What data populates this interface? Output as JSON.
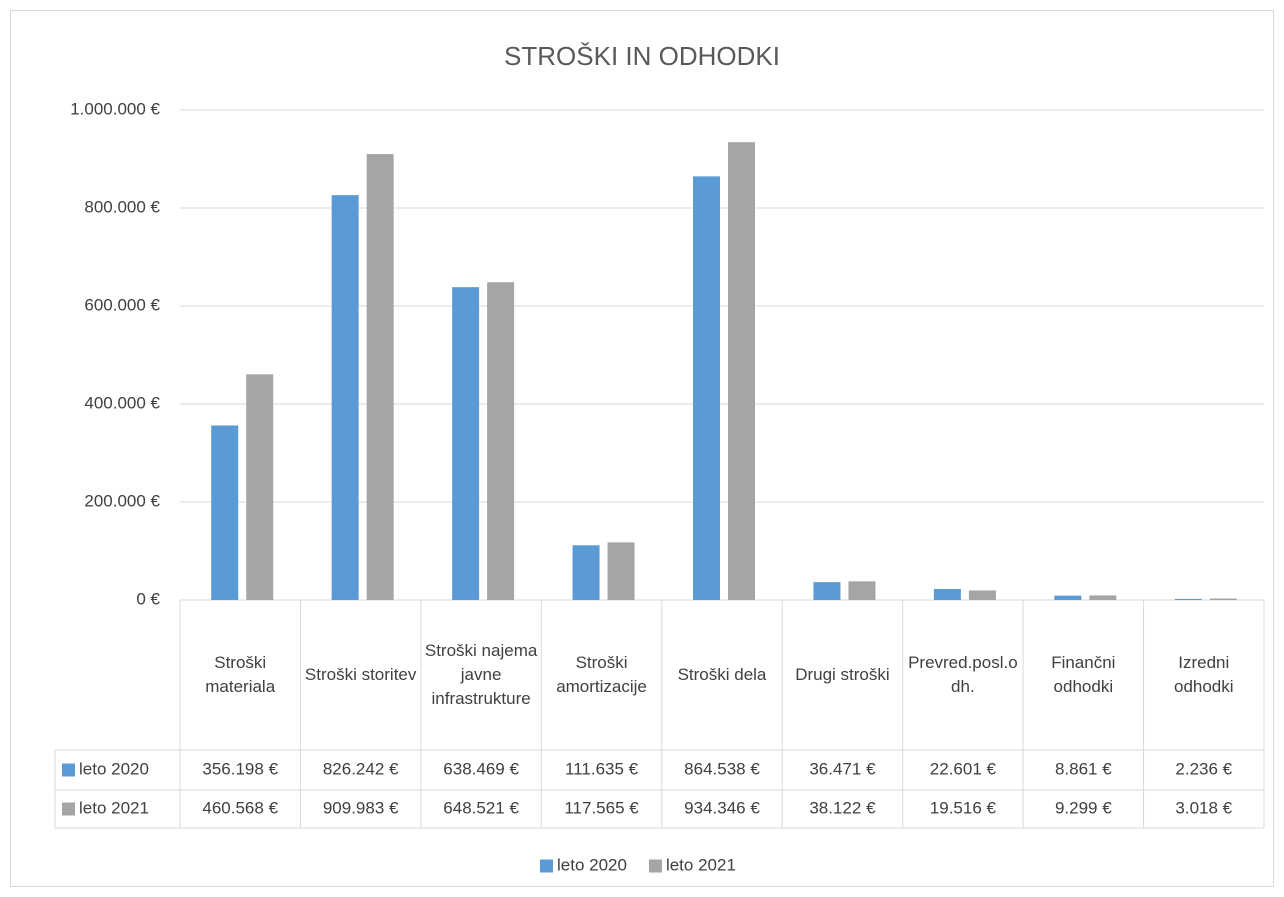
{
  "chart_data": {
    "type": "bar",
    "title": "STROŠKI IN ODHODKI",
    "categories": [
      "Stroški materiala",
      "Stroški storitev",
      "Stroški najema javne infrastrukture",
      "Stroški amortizacije",
      "Stroški dela",
      "Drugi stroški",
      "Prevred.posl.odh.",
      "Finančni odhodki",
      "Izredni odhodki"
    ],
    "series": [
      {
        "name": "leto 2020",
        "color": "#5b9bd5",
        "values": [
          356198,
          826242,
          638469,
          111635,
          864538,
          36471,
          22601,
          8861,
          2236
        ],
        "value_labels": [
          "356.198 €",
          "826.242 €",
          "638.469 €",
          "111.635 €",
          "864.538 €",
          "36.471 €",
          "22.601 €",
          "8.861 €",
          "2.236 €"
        ]
      },
      {
        "name": "leto 2021",
        "color": "#a5a5a5",
        "values": [
          460568,
          909983,
          648521,
          117565,
          934346,
          38122,
          19516,
          9299,
          3018
        ],
        "value_labels": [
          "460.568 €",
          "909.983 €",
          "648.521 €",
          "117.565 €",
          "934.346 €",
          "38.122 €",
          "19.516 €",
          "9.299 €",
          "3.018 €"
        ]
      }
    ],
    "ylim": [
      0,
      1000000
    ],
    "yticks": [
      {
        "value": 0,
        "label": "0 €"
      },
      {
        "value": 200000,
        "label": "200.000 €"
      },
      {
        "value": 400000,
        "label": "400.000 €"
      },
      {
        "value": 600000,
        "label": "600.000 €"
      },
      {
        "value": 800000,
        "label": "800.000 €"
      },
      {
        "value": 1000000,
        "label": "1.000.000 €"
      }
    ],
    "grid": true,
    "legend": "bottom"
  }
}
